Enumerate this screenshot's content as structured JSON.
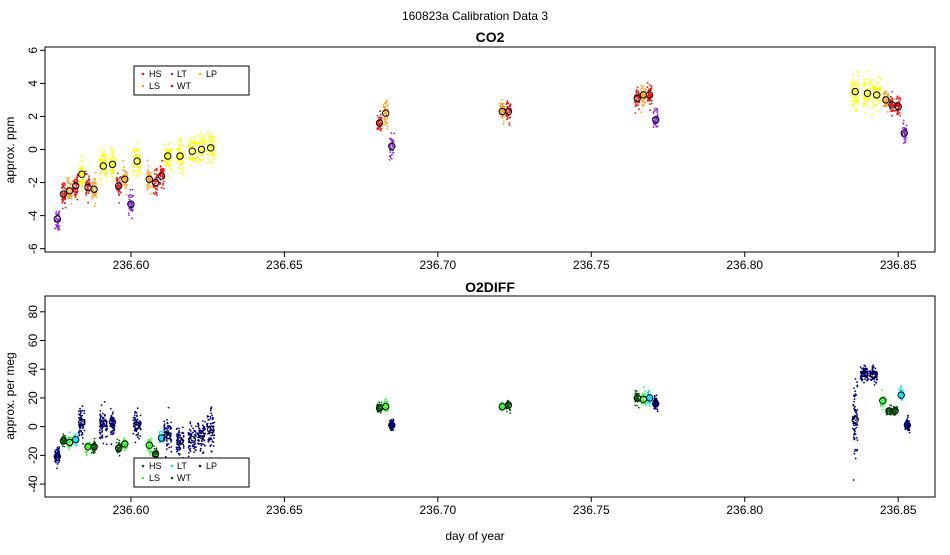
{
  "figure_title": "160823a   Calibration Data 3",
  "x_axis_label": "day of year",
  "colors": {
    "HS": "#e31a1c",
    "LS": "#ff9f1a",
    "LT": "#8a2be2",
    "WT": "#ff0000",
    "LP": "#ffff00",
    "O2_HS": "#006400",
    "O2_LS": "#33ff33",
    "O2_LT": "#00e5ff",
    "O2_WT": "#006400",
    "O2_LP": "#00008b"
  },
  "chart_data": [
    {
      "type": "scatter",
      "title": "CO2",
      "xlabel": "",
      "ylabel": "approx. ppm",
      "xlim": [
        236.572,
        236.862
      ],
      "ylim": [
        -6.2,
        6.2
      ],
      "xticks": [
        236.6,
        236.65,
        236.7,
        236.75,
        236.8,
        236.85
      ],
      "xtick_labels": [
        "236.60",
        "236.65",
        "236.70",
        "236.75",
        "236.80",
        "236.85"
      ],
      "yticks": [
        -6,
        -4,
        -2,
        0,
        2,
        4,
        6
      ],
      "ytick_labels": [
        "-6",
        "-4",
        "-2",
        "0",
        "2",
        "4",
        "6"
      ],
      "legend": {
        "position": "top-left",
        "entries": [
          "HS",
          "LT",
          "LP",
          "LS",
          "WT"
        ]
      },
      "clusters": [
        {
          "x": 236.576,
          "y": -4.2,
          "width": 0.0015,
          "spread": 0.8,
          "type": "LT"
        },
        {
          "x": 236.578,
          "y": -2.7,
          "width": 0.0015,
          "spread": 0.8,
          "type": "HS"
        },
        {
          "x": 236.58,
          "y": -2.5,
          "width": 0.0015,
          "spread": 0.8,
          "type": "LS"
        },
        {
          "x": 236.582,
          "y": -2.2,
          "width": 0.0015,
          "spread": 0.8,
          "type": "WT"
        },
        {
          "x": 236.584,
          "y": -1.5,
          "width": 0.0015,
          "spread": 0.9,
          "type": "LP"
        },
        {
          "x": 236.586,
          "y": -2.3,
          "width": 0.0015,
          "spread": 0.8,
          "type": "HS"
        },
        {
          "x": 236.588,
          "y": -2.4,
          "width": 0.0015,
          "spread": 0.8,
          "type": "LS"
        },
        {
          "x": 236.591,
          "y": -1.0,
          "width": 0.0025,
          "spread": 1.0,
          "type": "LP"
        },
        {
          "x": 236.594,
          "y": -0.9,
          "width": 0.0015,
          "spread": 0.9,
          "type": "LP"
        },
        {
          "x": 236.596,
          "y": -2.2,
          "width": 0.0015,
          "spread": 0.8,
          "type": "HS"
        },
        {
          "x": 236.598,
          "y": -1.8,
          "width": 0.0015,
          "spread": 0.8,
          "type": "LS"
        },
        {
          "x": 236.6,
          "y": -3.3,
          "width": 0.0015,
          "spread": 0.8,
          "type": "LT"
        },
        {
          "x": 236.602,
          "y": -0.7,
          "width": 0.0025,
          "spread": 1.0,
          "type": "LP"
        },
        {
          "x": 236.606,
          "y": -1.8,
          "width": 0.0015,
          "spread": 0.8,
          "type": "LS"
        },
        {
          "x": 236.608,
          "y": -2.0,
          "width": 0.0015,
          "spread": 0.8,
          "type": "HS"
        },
        {
          "x": 236.61,
          "y": -1.6,
          "width": 0.0015,
          "spread": 0.8,
          "type": "WT"
        },
        {
          "x": 236.612,
          "y": -0.4,
          "width": 0.0025,
          "spread": 1.0,
          "type": "LP"
        },
        {
          "x": 236.616,
          "y": -0.4,
          "width": 0.0025,
          "spread": 1.0,
          "type": "LP"
        },
        {
          "x": 236.62,
          "y": -0.1,
          "width": 0.0025,
          "spread": 1.0,
          "type": "LP"
        },
        {
          "x": 236.623,
          "y": 0.0,
          "width": 0.0025,
          "spread": 1.0,
          "type": "LP"
        },
        {
          "x": 236.626,
          "y": 0.1,
          "width": 0.0025,
          "spread": 1.0,
          "type": "LP"
        },
        {
          "x": 236.681,
          "y": 1.6,
          "width": 0.0015,
          "spread": 0.7,
          "type": "HS"
        },
        {
          "x": 236.683,
          "y": 2.2,
          "width": 0.0015,
          "spread": 0.8,
          "type": "LS"
        },
        {
          "x": 236.685,
          "y": 0.2,
          "width": 0.0015,
          "spread": 0.8,
          "type": "LT"
        },
        {
          "x": 236.721,
          "y": 2.3,
          "width": 0.0015,
          "spread": 0.7,
          "type": "LS"
        },
        {
          "x": 236.723,
          "y": 2.3,
          "width": 0.0015,
          "spread": 0.7,
          "type": "HS"
        },
        {
          "x": 236.765,
          "y": 3.1,
          "width": 0.0015,
          "spread": 0.7,
          "type": "HS"
        },
        {
          "x": 236.767,
          "y": 3.3,
          "width": 0.0015,
          "spread": 0.7,
          "type": "LS"
        },
        {
          "x": 236.769,
          "y": 3.3,
          "width": 0.0015,
          "spread": 0.7,
          "type": "WT"
        },
        {
          "x": 236.771,
          "y": 1.8,
          "width": 0.0015,
          "spread": 0.8,
          "type": "LT"
        },
        {
          "x": 236.836,
          "y": 3.5,
          "width": 0.0025,
          "spread": 1.1,
          "type": "LP"
        },
        {
          "x": 236.84,
          "y": 3.4,
          "width": 0.0025,
          "spread": 1.1,
          "type": "LP"
        },
        {
          "x": 236.843,
          "y": 3.3,
          "width": 0.0025,
          "spread": 1.1,
          "type": "LP"
        },
        {
          "x": 236.846,
          "y": 3.0,
          "width": 0.0015,
          "spread": 0.7,
          "type": "LS"
        },
        {
          "x": 236.848,
          "y": 2.7,
          "width": 0.0015,
          "spread": 0.7,
          "type": "HS"
        },
        {
          "x": 236.85,
          "y": 2.6,
          "width": 0.0015,
          "spread": 0.7,
          "type": "WT"
        },
        {
          "x": 236.852,
          "y": 1.0,
          "width": 0.0015,
          "spread": 0.8,
          "type": "LT"
        }
      ]
    },
    {
      "type": "scatter",
      "title": "O2DIFF",
      "xlabel": "day of year",
      "ylabel": "approx. per meg",
      "xlim": [
        236.572,
        236.862
      ],
      "ylim": [
        -49,
        91
      ],
      "xticks": [
        236.6,
        236.65,
        236.7,
        236.75,
        236.8,
        236.85
      ],
      "xtick_labels": [
        "236.60",
        "236.65",
        "236.70",
        "236.75",
        "236.80",
        "236.85"
      ],
      "yticks": [
        -40,
        -20,
        0,
        20,
        40,
        60,
        80
      ],
      "ytick_labels": [
        "-40",
        "-20",
        "0",
        "20",
        "40",
        "60",
        "80"
      ],
      "legend": {
        "position": "bottom-left",
        "entries": [
          "HS",
          "LT",
          "LP",
          "LS",
          "WT"
        ]
      },
      "clusters": [
        {
          "x": 236.576,
          "y": -21,
          "width": 0.0015,
          "spread": 6,
          "type": "LP"
        },
        {
          "x": 236.578,
          "y": -10,
          "width": 0.0015,
          "spread": 4,
          "type": "HS"
        },
        {
          "x": 236.58,
          "y": -11,
          "width": 0.0015,
          "spread": 5,
          "type": "LS"
        },
        {
          "x": 236.582,
          "y": -9,
          "width": 0.0015,
          "spread": 5,
          "type": "LT"
        },
        {
          "x": 236.584,
          "y": 3,
          "width": 0.002,
          "spread": 10,
          "type": "LP"
        },
        {
          "x": 236.586,
          "y": -14,
          "width": 0.0015,
          "spread": 5,
          "type": "LS"
        },
        {
          "x": 236.588,
          "y": -14,
          "width": 0.0015,
          "spread": 5,
          "type": "HS"
        },
        {
          "x": 236.591,
          "y": 2,
          "width": 0.0025,
          "spread": 12,
          "type": "LP"
        },
        {
          "x": 236.594,
          "y": 3,
          "width": 0.0015,
          "spread": 10,
          "type": "LP"
        },
        {
          "x": 236.596,
          "y": -15,
          "width": 0.0015,
          "spread": 5,
          "type": "HS"
        },
        {
          "x": 236.598,
          "y": -12,
          "width": 0.0015,
          "spread": 5,
          "type": "LS"
        },
        {
          "x": 236.602,
          "y": 1,
          "width": 0.0025,
          "spread": 10,
          "type": "LP"
        },
        {
          "x": 236.606,
          "y": -13,
          "width": 0.0015,
          "spread": 5,
          "type": "LS"
        },
        {
          "x": 236.608,
          "y": -19,
          "width": 0.0015,
          "spread": 5,
          "type": "HS"
        },
        {
          "x": 236.61,
          "y": -8,
          "width": 0.0015,
          "spread": 5,
          "type": "LT"
        },
        {
          "x": 236.612,
          "y": -6,
          "width": 0.0025,
          "spread": 12,
          "type": "LP"
        },
        {
          "x": 236.616,
          "y": -10,
          "width": 0.0025,
          "spread": 12,
          "type": "LP"
        },
        {
          "x": 236.62,
          "y": -9,
          "width": 0.0025,
          "spread": 12,
          "type": "LP"
        },
        {
          "x": 236.623,
          "y": -6,
          "width": 0.0025,
          "spread": 12,
          "type": "LP"
        },
        {
          "x": 236.626,
          "y": -2,
          "width": 0.0025,
          "spread": 14,
          "type": "LP"
        },
        {
          "x": 236.681,
          "y": 13,
          "width": 0.0015,
          "spread": 4,
          "type": "HS"
        },
        {
          "x": 236.683,
          "y": 14,
          "width": 0.0015,
          "spread": 5,
          "type": "LS"
        },
        {
          "x": 236.685,
          "y": 1,
          "width": 0.0015,
          "spread": 4,
          "type": "LP"
        },
        {
          "x": 236.721,
          "y": 14,
          "width": 0.0015,
          "spread": 4,
          "type": "LS"
        },
        {
          "x": 236.723,
          "y": 15,
          "width": 0.0015,
          "spread": 4,
          "type": "HS"
        },
        {
          "x": 236.765,
          "y": 20,
          "width": 0.0015,
          "spread": 5,
          "type": "HS"
        },
        {
          "x": 236.767,
          "y": 19,
          "width": 0.0015,
          "spread": 5,
          "type": "LS"
        },
        {
          "x": 236.769,
          "y": 20,
          "width": 0.0015,
          "spread": 6,
          "type": "LT"
        },
        {
          "x": 236.771,
          "y": 16,
          "width": 0.0015,
          "spread": 5,
          "type": "LP"
        },
        {
          "x": 236.836,
          "y": 5,
          "width": 0.0015,
          "spread": 30,
          "type": "LP"
        },
        {
          "x": 236.839,
          "y": 37,
          "width": 0.0025,
          "spread": 6,
          "type": "LP"
        },
        {
          "x": 236.842,
          "y": 36,
          "width": 0.0025,
          "spread": 6,
          "type": "LP"
        },
        {
          "x": 236.845,
          "y": 18,
          "width": 0.0015,
          "spread": 5,
          "type": "LS"
        },
        {
          "x": 236.847,
          "y": 11,
          "width": 0.0015,
          "spread": 4,
          "type": "HS"
        },
        {
          "x": 236.849,
          "y": 11,
          "width": 0.0015,
          "spread": 4,
          "type": "WT"
        },
        {
          "x": 236.851,
          "y": 22,
          "width": 0.0015,
          "spread": 6,
          "type": "LT"
        },
        {
          "x": 236.853,
          "y": 1,
          "width": 0.0015,
          "spread": 5,
          "type": "LP"
        }
      ]
    }
  ]
}
